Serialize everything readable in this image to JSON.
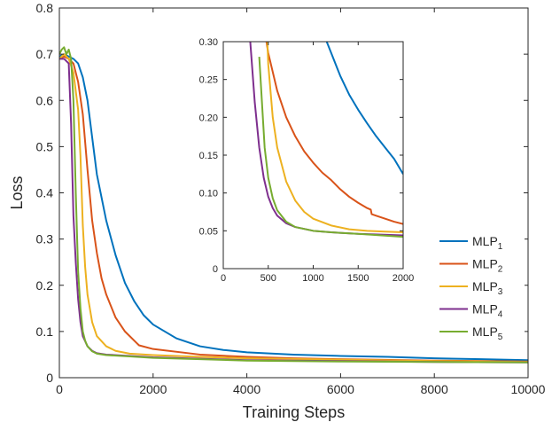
{
  "chart_data": [
    {
      "type": "line",
      "name": "main",
      "title": "",
      "xlabel": "Training Steps",
      "ylabel": "Loss",
      "xlim": [
        0,
        10000
      ],
      "ylim": [
        0,
        0.8
      ],
      "x_ticks": [
        0,
        2000,
        4000,
        6000,
        8000,
        10000
      ],
      "x_tick_labels": [
        "0",
        "2000",
        "4000",
        "6000",
        "8000",
        "10000"
      ],
      "y_ticks": [
        0,
        0.1,
        0.2,
        0.3,
        0.4,
        0.5,
        0.6,
        0.7,
        0.8
      ],
      "y_tick_labels": [
        "0",
        "0.1",
        "0.2",
        "0.3",
        "0.4",
        "0.5",
        "0.6",
        "0.7",
        "0.8"
      ],
      "grid": false,
      "legend_position": "right",
      "series": [
        {
          "name": "MLP1",
          "label_main": "MLP",
          "label_sub": "1",
          "color": "#0072BD",
          "points": [
            [
              0,
              0.695
            ],
            [
              100,
              0.7
            ],
            [
              200,
              0.695
            ],
            [
              300,
              0.69
            ],
            [
              400,
              0.68
            ],
            [
              500,
              0.65
            ],
            [
              600,
              0.6
            ],
            [
              700,
              0.52
            ],
            [
              800,
              0.44
            ],
            [
              1000,
              0.34
            ],
            [
              1200,
              0.265
            ],
            [
              1400,
              0.205
            ],
            [
              1600,
              0.165
            ],
            [
              1800,
              0.135
            ],
            [
              2000,
              0.115
            ],
            [
              2500,
              0.085
            ],
            [
              3000,
              0.068
            ],
            [
              3500,
              0.06
            ],
            [
              4000,
              0.055
            ],
            [
              5000,
              0.05
            ],
            [
              6000,
              0.047
            ],
            [
              7000,
              0.045
            ],
            [
              8000,
              0.042
            ],
            [
              9000,
              0.04
            ],
            [
              10000,
              0.038
            ]
          ]
        },
        {
          "name": "MLP2",
          "label_main": "MLP",
          "label_sub": "2",
          "color": "#D95319",
          "points": [
            [
              0,
              0.69
            ],
            [
              100,
              0.695
            ],
            [
              200,
              0.69
            ],
            [
              300,
              0.68
            ],
            [
              400,
              0.64
            ],
            [
              500,
              0.57
            ],
            [
              600,
              0.45
            ],
            [
              700,
              0.34
            ],
            [
              800,
              0.27
            ],
            [
              900,
              0.215
            ],
            [
              1000,
              0.18
            ],
            [
              1200,
              0.13
            ],
            [
              1400,
              0.1
            ],
            [
              1600,
              0.08
            ],
            [
              1650,
              0.075
            ],
            [
              1700,
              0.07
            ],
            [
              2000,
              0.062
            ],
            [
              3000,
              0.05
            ],
            [
              4000,
              0.045
            ],
            [
              5000,
              0.042
            ],
            [
              6000,
              0.04
            ],
            [
              8000,
              0.037
            ],
            [
              10000,
              0.035
            ]
          ]
        },
        {
          "name": "MLP3",
          "label_main": "MLP",
          "label_sub": "3",
          "color": "#EDB120",
          "points": [
            [
              0,
              0.69
            ],
            [
              100,
              0.7
            ],
            [
              200,
              0.69
            ],
            [
              300,
              0.66
            ],
            [
              400,
              0.58
            ],
            [
              450,
              0.48
            ],
            [
              500,
              0.33
            ],
            [
              550,
              0.24
            ],
            [
              600,
              0.18
            ],
            [
              700,
              0.12
            ],
            [
              800,
              0.09
            ],
            [
              1000,
              0.068
            ],
            [
              1200,
              0.058
            ],
            [
              1500,
              0.052
            ],
            [
              2000,
              0.049
            ],
            [
              3000,
              0.045
            ],
            [
              4000,
              0.042
            ],
            [
              6000,
              0.039
            ],
            [
              8000,
              0.036
            ],
            [
              10000,
              0.034
            ]
          ]
        },
        {
          "name": "MLP4",
          "label_main": "MLP",
          "label_sub": "4",
          "color": "#7E2F8E",
          "points": [
            [
              0,
              0.69
            ],
            [
              100,
              0.69
            ],
            [
              200,
              0.68
            ],
            [
              250,
              0.55
            ],
            [
              300,
              0.35
            ],
            [
              350,
              0.25
            ],
            [
              400,
              0.17
            ],
            [
              450,
              0.12
            ],
            [
              500,
              0.09
            ],
            [
              600,
              0.068
            ],
            [
              700,
              0.058
            ],
            [
              800,
              0.053
            ],
            [
              1000,
              0.05
            ],
            [
              1500,
              0.047
            ],
            [
              2000,
              0.044
            ],
            [
              3000,
              0.041
            ],
            [
              4000,
              0.038
            ],
            [
              6000,
              0.036
            ],
            [
              8000,
              0.034
            ],
            [
              10000,
              0.033
            ]
          ]
        },
        {
          "name": "MLP5",
          "label_main": "MLP",
          "label_sub": "5",
          "color": "#77AC30",
          "points": [
            [
              0,
              0.7
            ],
            [
              50,
              0.71
            ],
            [
              100,
              0.715
            ],
            [
              150,
              0.7
            ],
            [
              200,
              0.71
            ],
            [
              250,
              0.69
            ],
            [
              300,
              0.6
            ],
            [
              350,
              0.4
            ],
            [
              400,
              0.23
            ],
            [
              450,
              0.15
            ],
            [
              500,
              0.1
            ],
            [
              550,
              0.08
            ],
            [
              600,
              0.068
            ],
            [
              700,
              0.057
            ],
            [
              800,
              0.052
            ],
            [
              1000,
              0.049
            ],
            [
              1500,
              0.046
            ],
            [
              2000,
              0.043
            ],
            [
              3000,
              0.04
            ],
            [
              4000,
              0.037
            ],
            [
              6000,
              0.035
            ],
            [
              8000,
              0.034
            ],
            [
              10000,
              0.033
            ]
          ]
        }
      ]
    },
    {
      "type": "line",
      "name": "inset",
      "title": "",
      "xlabel": "",
      "ylabel": "",
      "xlim": [
        0,
        2000
      ],
      "ylim": [
        0,
        0.3
      ],
      "x_ticks": [
        0,
        500,
        1000,
        1500,
        2000
      ],
      "x_tick_labels": [
        "0",
        "500",
        "1000",
        "1500",
        "2000"
      ],
      "y_ticks": [
        0,
        0.05,
        0.1,
        0.15,
        0.2,
        0.25,
        0.3
      ],
      "y_tick_labels": [
        "0",
        "0.05",
        "0.10",
        "0.15",
        "0.20",
        "0.25",
        "0.30"
      ],
      "grid": false,
      "series": [
        {
          "name": "MLP1",
          "color": "#0072BD",
          "points": [
            [
              1150,
              0.3
            ],
            [
              1200,
              0.285
            ],
            [
              1300,
              0.255
            ],
            [
              1400,
              0.23
            ],
            [
              1500,
              0.21
            ],
            [
              1600,
              0.192
            ],
            [
              1700,
              0.175
            ],
            [
              1800,
              0.16
            ],
            [
              1900,
              0.145
            ],
            [
              2000,
              0.125
            ]
          ]
        },
        {
          "name": "MLP2",
          "color": "#D95319",
          "points": [
            [
              480,
              0.3
            ],
            [
              500,
              0.285
            ],
            [
              600,
              0.235
            ],
            [
              700,
              0.2
            ],
            [
              800,
              0.175
            ],
            [
              900,
              0.155
            ],
            [
              1000,
              0.14
            ],
            [
              1100,
              0.127
            ],
            [
              1200,
              0.117
            ],
            [
              1300,
              0.105
            ],
            [
              1400,
              0.095
            ],
            [
              1500,
              0.087
            ],
            [
              1600,
              0.08
            ],
            [
              1640,
              0.078
            ],
            [
              1650,
              0.072
            ],
            [
              1700,
              0.07
            ],
            [
              1800,
              0.066
            ],
            [
              1900,
              0.062
            ],
            [
              2000,
              0.059
            ]
          ]
        },
        {
          "name": "MLP3",
          "color": "#EDB120",
          "points": [
            [
              490,
              0.3
            ],
            [
              500,
              0.27
            ],
            [
              550,
              0.2
            ],
            [
              600,
              0.16
            ],
            [
              700,
              0.115
            ],
            [
              800,
              0.09
            ],
            [
              900,
              0.075
            ],
            [
              1000,
              0.066
            ],
            [
              1200,
              0.057
            ],
            [
              1400,
              0.052
            ],
            [
              1600,
              0.05
            ],
            [
              1800,
              0.049
            ],
            [
              2000,
              0.048
            ]
          ]
        },
        {
          "name": "MLP4",
          "color": "#7E2F8E",
          "points": [
            [
              300,
              0.3
            ],
            [
              350,
              0.22
            ],
            [
              400,
              0.16
            ],
            [
              450,
              0.12
            ],
            [
              500,
              0.095
            ],
            [
              550,
              0.08
            ],
            [
              600,
              0.07
            ],
            [
              700,
              0.06
            ],
            [
              800,
              0.055
            ],
            [
              1000,
              0.05
            ],
            [
              1200,
              0.048
            ],
            [
              1500,
              0.046
            ],
            [
              2000,
              0.044
            ]
          ]
        },
        {
          "name": "MLP5",
          "color": "#77AC30",
          "points": [
            [
              400,
              0.28
            ],
            [
              430,
              0.22
            ],
            [
              460,
              0.16
            ],
            [
              500,
              0.12
            ],
            [
              550,
              0.093
            ],
            [
              600,
              0.077
            ],
            [
              700,
              0.062
            ],
            [
              800,
              0.055
            ],
            [
              1000,
              0.05
            ],
            [
              1200,
              0.048
            ],
            [
              1500,
              0.046
            ],
            [
              2000,
              0.042
            ]
          ]
        }
      ]
    }
  ]
}
